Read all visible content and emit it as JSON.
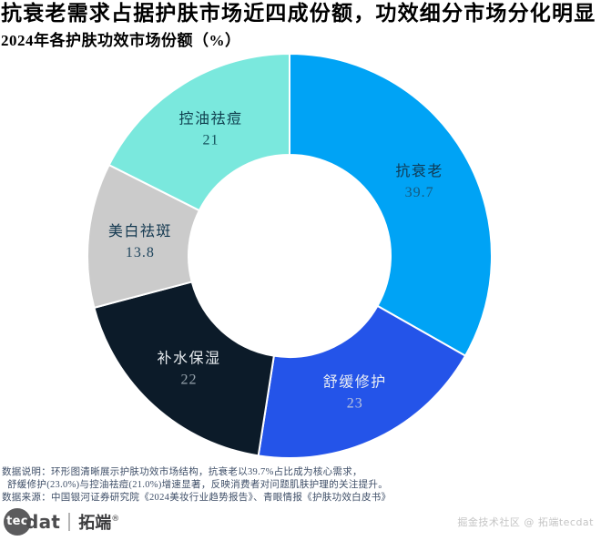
{
  "header": {
    "title": "抗衰老需求占据护肤市场近四成份额，功效细分市场分化明显",
    "subtitle": "2024年各护肤功效市场份额（%）"
  },
  "chart_data": {
    "type": "pie",
    "variant": "donut",
    "title": "2024年各护肤功效市场份额（%）",
    "unit": "%",
    "start_angle_deg": 0,
    "direction": "clockwise",
    "inner_radius_ratio": 0.5,
    "separator_color": "#ffffff",
    "slices": [
      {
        "label": "抗衰老",
        "value": 39.7,
        "display_value": "39.7",
        "color": "#00a3f5",
        "label_color": "#103a54",
        "value_color": "#175a7e"
      },
      {
        "label": "舒缓修护",
        "value": 23,
        "display_value": "23",
        "color": "#2454e9",
        "label_color": "#e9edf4",
        "value_color": "#b9c3dd"
      },
      {
        "label": "补水保湿",
        "value": 22,
        "display_value": "22",
        "color": "#0c1b29",
        "label_color": "#e6eaee",
        "value_color": "#97a3ad"
      },
      {
        "label": "美白祛斑",
        "value": 13.8,
        "display_value": "13.8",
        "color": "#cbcbcb",
        "label_color": "#133850",
        "value_color": "#20465e"
      },
      {
        "label": "控油祛痘",
        "value": 21,
        "display_value": "21",
        "color": "#7ae8dd",
        "label_color": "#0e3d4d",
        "value_color": "#14505c"
      }
    ]
  },
  "notes": {
    "line1": "数据说明：环形图清晰展示护肤功效市场结构，抗衰老以39.7%占比成为核心需求，",
    "line2": "舒缓修护(23.0%)与控油祛痘(21.0%)增速显著，反映消费者对问题肌肤护理的关注提升。",
    "line3": "数据来源：中国银河证券研究院《2024美妆行业趋势报告》、青眼情报《护肤功效白皮书》"
  },
  "footer": {
    "logo_tec": "tec",
    "logo_dat": "dat",
    "logo_brand": "拓端",
    "logo_reg": "®",
    "credit": "掘金技术社区 @ 拓端tecdat"
  }
}
